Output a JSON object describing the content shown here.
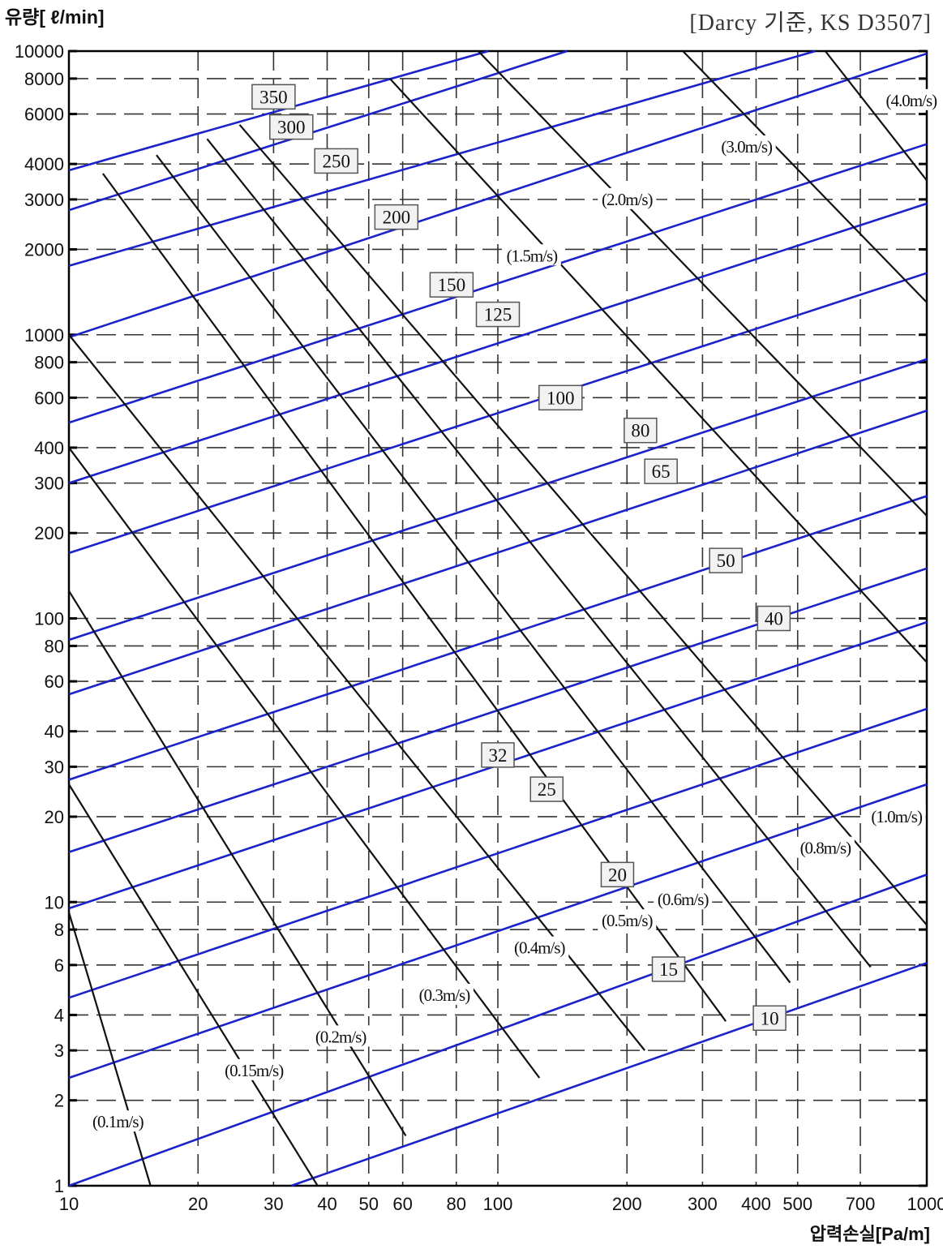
{
  "header": {
    "ylabel": "유량[ ℓ/min]",
    "standard": "[Darcy 기준, KS D3507]",
    "xlabel": "압력손실[Pa/m]"
  },
  "chart_data": {
    "type": "line",
    "scale": "log-log",
    "xlabel": "압력손실[Pa/m]",
    "ylabel": "유량[ ℓ/min]",
    "xlim": [
      10,
      1000
    ],
    "ylim": [
      1,
      10000
    ],
    "grid": true,
    "x_tick_labels": [
      "10",
      "20",
      "30",
      "40",
      "50",
      "60",
      "80",
      "100",
      "200",
      "300",
      "400",
      "500",
      "700",
      "1000"
    ],
    "x_ticks": [
      10,
      20,
      30,
      40,
      50,
      60,
      80,
      100,
      200,
      300,
      400,
      500,
      700,
      1000
    ],
    "y_tick_labels": [
      "1",
      "2",
      "3",
      "4",
      "6",
      "8",
      "10",
      "20",
      "30",
      "40",
      "60",
      "80",
      "100",
      "200",
      "300",
      "400",
      "600",
      "800",
      "1000",
      "2000",
      "3000",
      "4000",
      "6000",
      "8000",
      "10000"
    ],
    "y_ticks": [
      1,
      2,
      3,
      4,
      6,
      8,
      10,
      20,
      30,
      40,
      60,
      80,
      100,
      200,
      300,
      400,
      600,
      800,
      1000,
      2000,
      3000,
      4000,
      6000,
      8000,
      10000
    ],
    "pipe_size_series": [
      {
        "name": "10",
        "points": [
          [
            33,
            1
          ],
          [
            1000,
            6.1
          ]
        ],
        "label_at": [
          430,
          3.9
        ]
      },
      {
        "name": "15",
        "points": [
          [
            10,
            1
          ],
          [
            1000,
            12.5
          ]
        ],
        "label_at": [
          250,
          5.8
        ]
      },
      {
        "name": "20",
        "points": [
          [
            10,
            2.4
          ],
          [
            1000,
            26
          ]
        ],
        "label_at": [
          190,
          12.5
        ]
      },
      {
        "name": "25",
        "points": [
          [
            10,
            4.6
          ],
          [
            1000,
            48
          ]
        ],
        "label_at": [
          130,
          25
        ]
      },
      {
        "name": "32",
        "points": [
          [
            10,
            9.5
          ],
          [
            1000,
            97
          ]
        ],
        "label_at": [
          100,
          33
        ]
      },
      {
        "name": "40",
        "points": [
          [
            10,
            15
          ],
          [
            1000,
            150
          ]
        ],
        "label_at": [
          440,
          100
        ]
      },
      {
        "name": "50",
        "points": [
          [
            10,
            27
          ],
          [
            1000,
            270
          ]
        ],
        "label_at": [
          340,
          160
        ]
      },
      {
        "name": "65",
        "points": [
          [
            10,
            54
          ],
          [
            1000,
            540
          ]
        ],
        "label_at": [
          240,
          330
        ]
      },
      {
        "name": "80",
        "points": [
          [
            10,
            84
          ],
          [
            1000,
            820
          ]
        ],
        "label_at": [
          215,
          460
        ]
      },
      {
        "name": "100",
        "points": [
          [
            10,
            170
          ],
          [
            1000,
            1650
          ]
        ],
        "label_at": [
          140,
          600
        ]
      },
      {
        "name": "125",
        "points": [
          [
            10,
            300
          ],
          [
            1000,
            2900
          ]
        ],
        "label_at": [
          100,
          1180
        ]
      },
      {
        "name": "150",
        "points": [
          [
            10,
            490
          ],
          [
            1000,
            4700
          ]
        ],
        "label_at": [
          78,
          1500
        ]
      },
      {
        "name": "200",
        "points": [
          [
            10,
            980
          ],
          [
            1000,
            9800
          ]
        ],
        "label_at": [
          58,
          2600
        ]
      },
      {
        "name": "250",
        "points": [
          [
            10,
            1750
          ],
          [
            550,
            10000
          ]
        ],
        "label_at": [
          42,
          4100
        ]
      },
      {
        "name": "300",
        "points": [
          [
            10,
            2750
          ],
          [
            145,
            10000
          ]
        ],
        "label_at": [
          33,
          5400
        ]
      },
      {
        "name": "350",
        "points": [
          [
            10,
            3800
          ],
          [
            95,
            10000
          ]
        ],
        "label_at": [
          30,
          6900
        ]
      }
    ],
    "velocity_series": [
      {
        "name": "(0.1m/s)",
        "points": [
          [
            10,
            9.2
          ],
          [
            15.5,
            1
          ]
        ],
        "label_at": [
          13,
          1.68
        ]
      },
      {
        "name": "(0.15m/s)",
        "points": [
          [
            10,
            26
          ],
          [
            38,
            1
          ]
        ],
        "label_at": [
          27,
          2.55
        ]
      },
      {
        "name": "(0.2m/s)",
        "points": [
          [
            10,
            125
          ],
          [
            61,
            1.5
          ]
        ],
        "label_at": [
          43,
          3.35
        ]
      },
      {
        "name": "(0.3m/s)",
        "points": [
          [
            10,
            400
          ],
          [
            125,
            2.4
          ]
        ],
        "label_at": [
          75,
          4.7
        ]
      },
      {
        "name": "(0.4m/s)",
        "points": [
          [
            10,
            1000
          ],
          [
            220,
            3
          ]
        ],
        "label_at": [
          125,
          6.9
        ]
      },
      {
        "name": "(0.5m/s)",
        "points": [
          [
            12,
            3700
          ],
          [
            340,
            3.8
          ]
        ],
        "label_at": [
          200,
          8.6
        ]
      },
      {
        "name": "(0.6m/s)",
        "points": [
          [
            16,
            4300
          ],
          [
            480,
            5.2
          ]
        ],
        "label_at": [
          270,
          10.2
        ]
      },
      {
        "name": "(0.8m/s)",
        "points": [
          [
            21,
            4900
          ],
          [
            740,
            5.9
          ]
        ],
        "label_at": [
          580,
          15.5
        ]
      },
      {
        "name": "(1.0m/s)",
        "points": [
          [
            25,
            5500
          ],
          [
            1000,
            8.3
          ]
        ],
        "label_at": [
          850,
          20
        ]
      },
      {
        "name": "(1.5m/s)",
        "points": [
          [
            56,
            8000
          ],
          [
            1000,
            70
          ]
        ],
        "label_at": [
          120,
          1900
        ]
      },
      {
        "name": "(2.0m/s)",
        "points": [
          [
            90,
            10000
          ],
          [
            1000,
            230
          ]
        ],
        "label_at": [
          200,
          3000
        ]
      },
      {
        "name": "(3.0m/s)",
        "points": [
          [
            270,
            10000
          ],
          [
            1000,
            1300
          ]
        ],
        "label_at": [
          380,
          4600
        ]
      },
      {
        "name": "(4.0m/s)",
        "points": [
          [
            580,
            10000
          ],
          [
            1000,
            3500
          ]
        ],
        "label_at": [
          920,
          6700
        ]
      }
    ]
  }
}
